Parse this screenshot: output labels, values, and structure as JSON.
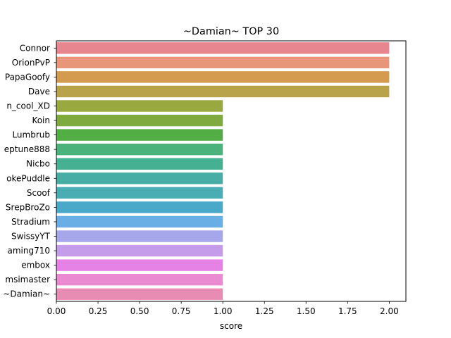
{
  "chart_data": {
    "type": "bar",
    "orientation": "horizontal",
    "title": "~Damian~ TOP 30",
    "xlabel": "score",
    "ylabel": "",
    "xlim": [
      0,
      2.1
    ],
    "xticks": [
      "0.00",
      "0.25",
      "0.50",
      "0.75",
      "1.00",
      "1.25",
      "1.50",
      "1.75",
      "2.00"
    ],
    "grid": false,
    "categories": [
      "Connor",
      "OrionPvP",
      "PapaGoofy",
      "Dave",
      "n_cool_XD",
      "Koin",
      "Lumbrub",
      "eptune888",
      "Nicbo",
      "okePuddle",
      "Scoof",
      "SrepBroZo",
      "Stradium",
      "SwissyYT",
      "aming710",
      "embox",
      "msimaster",
      "~Damian~"
    ],
    "values": [
      2,
      2,
      2,
      2,
      1,
      1,
      1,
      1,
      1,
      1,
      1,
      1,
      1,
      1,
      1,
      1,
      1,
      1
    ],
    "colors": [
      "#e8868f",
      "#e8967a",
      "#d49a4d",
      "#b8a24a",
      "#99a83f",
      "#7eaa3f",
      "#52ad44",
      "#4ab27a",
      "#46b093",
      "#48aea5",
      "#49adb3",
      "#4aa9c8",
      "#6aaee6",
      "#a6a6ea",
      "#c59cea",
      "#e681e6",
      "#ea8ad0",
      "#e98cb4"
    ]
  }
}
